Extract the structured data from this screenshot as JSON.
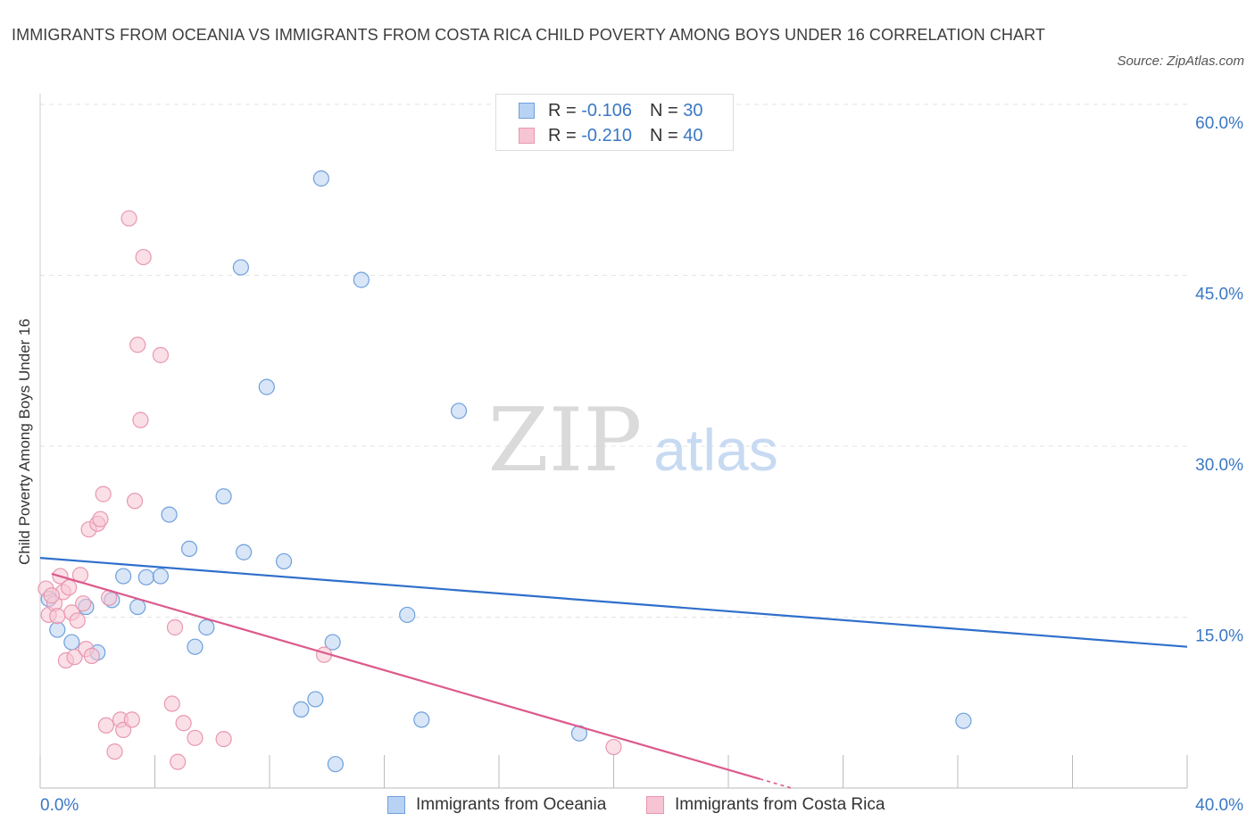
{
  "chart_data": {
    "type": "scatter",
    "title": "IMMIGRANTS FROM OCEANIA VS IMMIGRANTS FROM COSTA RICA CHILD POVERTY AMONG BOYS UNDER 16 CORRELATION CHART",
    "source": "Source: ZipAtlas.com",
    "ylabel": "Child Poverty Among Boys Under 16",
    "xlabel": "",
    "xlim": [
      0,
      40
    ],
    "ylim": [
      0,
      60
    ],
    "x_tick_labels": [
      "0.0%",
      "40.0%"
    ],
    "y_ticks": [
      15,
      30,
      45,
      60
    ],
    "y_tick_labels": [
      "15.0%",
      "30.0%",
      "45.0%",
      "60.0%"
    ],
    "grid": true,
    "watermark": {
      "zip": "ZIP",
      "atlas": "atlas"
    },
    "legend": {
      "placement": "top-center",
      "rows": [
        {
          "r_label": "R = ",
          "r_value": "-0.106",
          "n_label": "N = ",
          "n_value": "30"
        },
        {
          "r_label": "R = ",
          "r_value": "-0.210",
          "n_label": "N = ",
          "n_value": "40"
        }
      ]
    },
    "series": [
      {
        "name": "Immigrants from Oceania",
        "color": "#6fa0dc",
        "fill": "#b8d2f3",
        "line_color": "#2f6fcb",
        "trend": {
          "x0": 0,
          "y0": 20.2,
          "x1": 40,
          "y1": 12.4
        },
        "points": [
          [
            0.3,
            16.6
          ],
          [
            0.6,
            13.9
          ],
          [
            1.1,
            12.8
          ],
          [
            1.6,
            15.9
          ],
          [
            2.0,
            11.9
          ],
          [
            2.5,
            16.5
          ],
          [
            2.9,
            18.6
          ],
          [
            3.4,
            15.9
          ],
          [
            3.7,
            18.5
          ],
          [
            4.2,
            18.6
          ],
          [
            4.5,
            24.0
          ],
          [
            5.2,
            21.0
          ],
          [
            5.4,
            12.4
          ],
          [
            5.8,
            14.1
          ],
          [
            6.4,
            25.6
          ],
          [
            7.0,
            45.7
          ],
          [
            7.1,
            20.7
          ],
          [
            7.9,
            35.2
          ],
          [
            8.5,
            19.9
          ],
          [
            9.1,
            6.9
          ],
          [
            9.6,
            7.8
          ],
          [
            9.8,
            53.5
          ],
          [
            10.2,
            12.8
          ],
          [
            10.3,
            2.1
          ],
          [
            11.2,
            44.6
          ],
          [
            12.8,
            15.2
          ],
          [
            13.3,
            6.0
          ],
          [
            14.6,
            33.1
          ],
          [
            18.8,
            4.8
          ],
          [
            32.2,
            5.9
          ]
        ]
      },
      {
        "name": "Immigrants from Costa Rica",
        "color": "#e898b0",
        "fill": "#f7c4d3",
        "line_color": "#dc5a8c",
        "trend": {
          "x0": 0.4,
          "y0": 18.8,
          "x1": 25.1,
          "y1": 0.8
        },
        "points": [
          [
            0.2,
            17.5
          ],
          [
            0.3,
            15.2
          ],
          [
            0.5,
            16.2
          ],
          [
            0.6,
            15.1
          ],
          [
            0.7,
            18.6
          ],
          [
            0.8,
            17.2
          ],
          [
            0.9,
            11.2
          ],
          [
            1.0,
            17.6
          ],
          [
            1.1,
            15.4
          ],
          [
            1.2,
            11.5
          ],
          [
            1.4,
            18.7
          ],
          [
            1.5,
            16.2
          ],
          [
            1.6,
            12.2
          ],
          [
            1.7,
            22.7
          ],
          [
            1.8,
            11.6
          ],
          [
            2.0,
            23.2
          ],
          [
            2.1,
            23.6
          ],
          [
            2.2,
            25.8
          ],
          [
            2.3,
            5.5
          ],
          [
            2.4,
            16.7
          ],
          [
            2.6,
            3.2
          ],
          [
            2.8,
            6.0
          ],
          [
            2.9,
            5.1
          ],
          [
            3.1,
            50.0
          ],
          [
            3.2,
            6.0
          ],
          [
            3.3,
            25.2
          ],
          [
            3.4,
            38.9
          ],
          [
            3.6,
            46.6
          ],
          [
            3.5,
            32.3
          ],
          [
            4.2,
            38.0
          ],
          [
            4.6,
            7.4
          ],
          [
            4.7,
            14.1
          ],
          [
            4.8,
            2.3
          ],
          [
            5.0,
            5.7
          ],
          [
            5.4,
            4.4
          ],
          [
            6.4,
            4.3
          ],
          [
            9.9,
            11.7
          ],
          [
            20.0,
            3.6
          ],
          [
            1.3,
            14.7
          ],
          [
            0.4,
            16.9
          ]
        ]
      }
    ]
  }
}
